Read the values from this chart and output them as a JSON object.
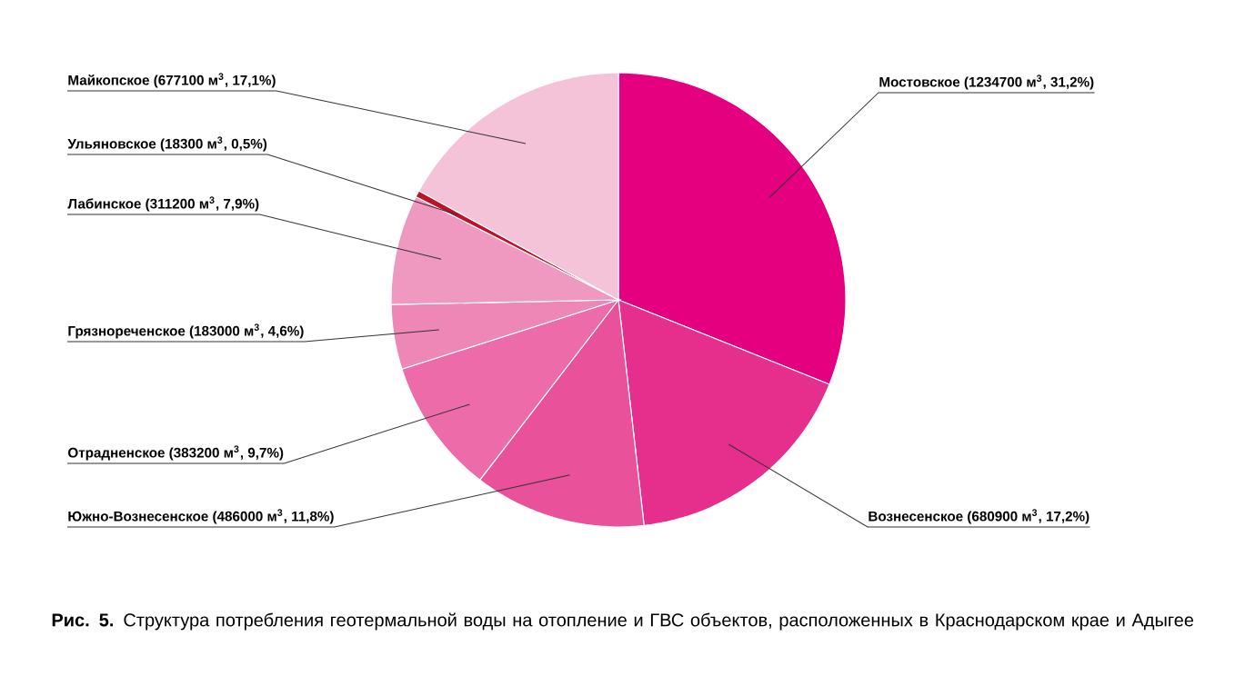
{
  "chart_data": {
    "type": "pie",
    "title": "**Рис. 5.** Структура потребления геотермальной воды на отопление и ГВС объектов, расположенных в Краснодарском крае и Адыгее",
    "categories": [
      "Мостовское (1234700 м$^{3}$, 31,2%)",
      "Вознесенское (680900 м$^{3}$, 17,2%)",
      "Южно-Вознесенское (486000 м$^{3}$, 11,8%)",
      "Отрадненское (383200 м$^{3}$, 9,7%)",
      "Грязнореченское (183000 м$^{3}$, 4,6%)",
      "Лабинское (311200 м$^{3}$, 7,9%)",
      "Ульяновское (18300 м$^{3}$, 0,5%)",
      "Майкопское (677100 м$^{3}$, 17,1%)"
    ],
    "values": [
      1234700,
      680900,
      486000,
      383200,
      183000,
      311200,
      18300,
      677100
    ],
    "colors": [
      "#e4007e",
      "#e62f8c",
      "#e9529b",
      "#ec6ba8",
      "#ee86b6",
      "#ef98c0",
      "#c0102a",
      "#f4c3d8"
    ]
  }
}
